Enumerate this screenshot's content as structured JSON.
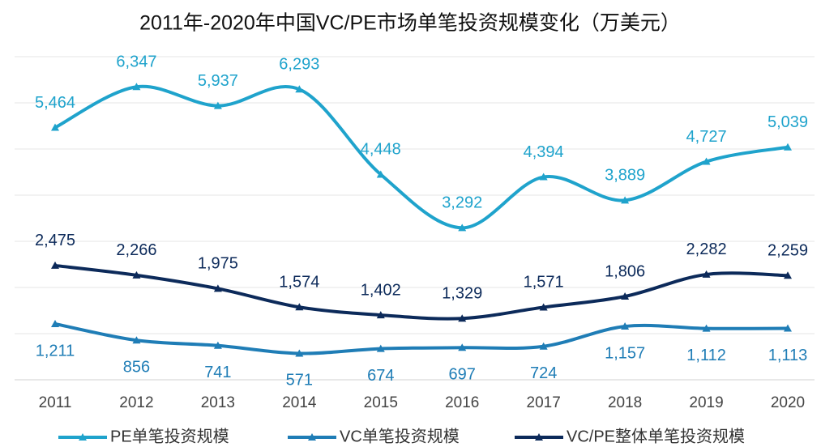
{
  "chart_data": {
    "type": "line",
    "title": "2011年-2020年中国VC/PE市场单笔投资规模变化（万美元）",
    "categories": [
      "2011",
      "2012",
      "2013",
      "2014",
      "2015",
      "2016",
      "2017",
      "2018",
      "2019",
      "2020"
    ],
    "series": [
      {
        "name": "PE单笔投资规模",
        "color": "#1fa3cc",
        "label_pos": "above",
        "values": [
          5464,
          6347,
          5937,
          6293,
          4448,
          3292,
          4394,
          3889,
          4727,
          5039
        ],
        "value_labels": [
          "5,464",
          "6,347",
          "5,937",
          "6,293",
          "4,448",
          "3,292",
          "4,394",
          "3,889",
          "4,727",
          "5,039"
        ]
      },
      {
        "name": "VC单笔投资规模",
        "color": "#1f7db6",
        "label_pos": "below",
        "values": [
          1211,
          856,
          741,
          571,
          674,
          697,
          724,
          1157,
          1112,
          1113
        ],
        "value_labels": [
          "1,211",
          "856",
          "741",
          "571",
          "674",
          "697",
          "724",
          "1,157",
          "1,112",
          "1,113"
        ]
      },
      {
        "name": "VC/PE整体单笔投资规模",
        "color": "#0c2a5a",
        "label_pos": "above",
        "values": [
          2475,
          2266,
          1975,
          1574,
          1402,
          1329,
          1571,
          1806,
          2282,
          2259
        ],
        "value_labels": [
          "2,475",
          "2,266",
          "1,975",
          "1,574",
          "1,402",
          "1,329",
          "1,571",
          "1,806",
          "2,282",
          "2,259"
        ]
      }
    ],
    "ylim": [
      0,
      7000
    ],
    "yticks": [
      0,
      1000,
      2000,
      3000,
      4000,
      5000,
      6000,
      7000
    ],
    "grid": true,
    "legend": "bottom"
  }
}
